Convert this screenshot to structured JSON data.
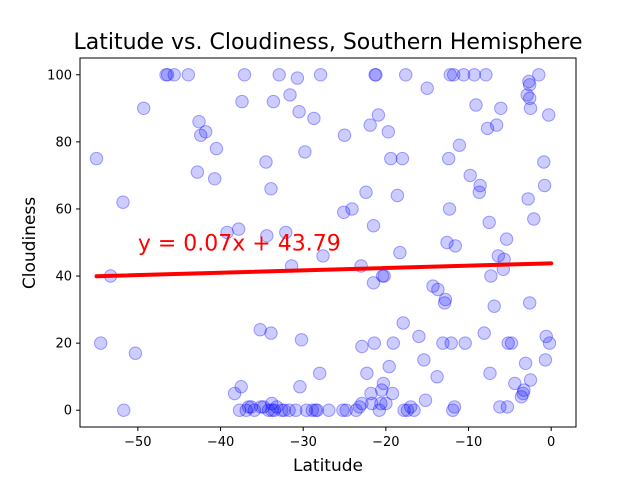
{
  "chart_data": {
    "type": "scatter",
    "title": "Latitude vs. Cloudiness, Southern Hemisphere",
    "xlabel": "Latitude",
    "ylabel": "Cloudiness",
    "xlim": [
      -57,
      3
    ],
    "ylim": [
      -5,
      105
    ],
    "xticks": [
      -50,
      -40,
      -30,
      -20,
      -10,
      0
    ],
    "yticks": [
      0,
      20,
      40,
      60,
      80,
      100
    ],
    "grid": false,
    "point_color": "#0000ff",
    "line_color": "#ff0000",
    "regression": {
      "equation": "y = 0.07x + 43.79",
      "slope": 0.07,
      "intercept": 43.79,
      "x_range": [
        -55,
        0
      ],
      "annotation_at": [
        -50,
        50
      ]
    },
    "points": [
      [
        -55,
        75
      ],
      [
        -54.5,
        20
      ],
      [
        -53.3,
        40
      ],
      [
        -51.8,
        62
      ],
      [
        -51.7,
        0
      ],
      [
        -50.3,
        17
      ],
      [
        -49.3,
        90
      ],
      [
        -46.6,
        100
      ],
      [
        -46.4,
        100
      ],
      [
        -45.6,
        100
      ],
      [
        -43.9,
        100
      ],
      [
        -42.8,
        71
      ],
      [
        -42.6,
        86
      ],
      [
        -42.4,
        82
      ],
      [
        -41.8,
        83
      ],
      [
        -40.7,
        69
      ],
      [
        -40.5,
        78
      ],
      [
        -39.2,
        53
      ],
      [
        -38.3,
        5
      ],
      [
        -37.8,
        54
      ],
      [
        -37.7,
        0
      ],
      [
        -37.5,
        7
      ],
      [
        -37.4,
        92
      ],
      [
        -37.1,
        100
      ],
      [
        -36.9,
        0
      ],
      [
        -36.6,
        1
      ],
      [
        -36.3,
        1
      ],
      [
        -35.9,
        0
      ],
      [
        -35.2,
        24
      ],
      [
        -35.1,
        1
      ],
      [
        -34.8,
        1
      ],
      [
        -34.5,
        74
      ],
      [
        -34.4,
        52
      ],
      [
        -34.2,
        0
      ],
      [
        -33.9,
        23
      ],
      [
        -33.9,
        66
      ],
      [
        -33.8,
        2
      ],
      [
        -33.8,
        0
      ],
      [
        -33.6,
        92
      ],
      [
        -33.5,
        0
      ],
      [
        -33.2,
        1
      ],
      [
        -32.9,
        100
      ],
      [
        -32.6,
        0
      ],
      [
        -32.3,
        0
      ],
      [
        -32.1,
        53
      ],
      [
        -31.7,
        0
      ],
      [
        -31.6,
        94
      ],
      [
        -31.4,
        43
      ],
      [
        -30.9,
        0
      ],
      [
        -30.7,
        99
      ],
      [
        -30.5,
        89
      ],
      [
        -30.4,
        7
      ],
      [
        -30.2,
        21
      ],
      [
        -29.8,
        77
      ],
      [
        -29.6,
        0
      ],
      [
        -28.9,
        0
      ],
      [
        -28.7,
        87
      ],
      [
        -28.5,
        0
      ],
      [
        -28.3,
        0
      ],
      [
        -28.0,
        11
      ],
      [
        -27.9,
        100
      ],
      [
        -27.6,
        46
      ],
      [
        -26.9,
        0
      ],
      [
        -25.2,
        0
      ],
      [
        -25.1,
        59
      ],
      [
        -25.0,
        82
      ],
      [
        -24.8,
        0
      ],
      [
        -24.1,
        60
      ],
      [
        -23.6,
        0
      ],
      [
        -23.2,
        1
      ],
      [
        -23.0,
        43
      ],
      [
        -22.9,
        19
      ],
      [
        -22.9,
        2
      ],
      [
        -22.4,
        65
      ],
      [
        -22.3,
        11
      ],
      [
        -21.9,
        85
      ],
      [
        -21.8,
        5
      ],
      [
        -21.7,
        2
      ],
      [
        -21.5,
        55
      ],
      [
        -21.5,
        38
      ],
      [
        -21.4,
        20
      ],
      [
        -21.3,
        100
      ],
      [
        -21.2,
        100
      ],
      [
        -20.9,
        88
      ],
      [
        -20.8,
        0
      ],
      [
        -20.6,
        2
      ],
      [
        -20.5,
        6
      ],
      [
        -20.4,
        40
      ],
      [
        -20.3,
        8
      ],
      [
        -20.2,
        40
      ],
      [
        -20.0,
        2
      ],
      [
        -19.7,
        83
      ],
      [
        -19.6,
        13
      ],
      [
        -19.4,
        75
      ],
      [
        -19.2,
        5
      ],
      [
        -19.1,
        20
      ],
      [
        -18.6,
        64
      ],
      [
        -18.3,
        47
      ],
      [
        -18.0,
        75
      ],
      [
        -17.9,
        26
      ],
      [
        -17.8,
        0
      ],
      [
        -17.6,
        100
      ],
      [
        -17.4,
        0
      ],
      [
        -17.0,
        1
      ],
      [
        -16.6,
        0
      ],
      [
        -16.0,
        22
      ],
      [
        -15.4,
        15
      ],
      [
        -15.2,
        3
      ],
      [
        -15.0,
        96
      ],
      [
        -14.3,
        37
      ],
      [
        -13.8,
        10
      ],
      [
        -13.7,
        36
      ],
      [
        -13.1,
        20
      ],
      [
        -12.9,
        32
      ],
      [
        -12.8,
        33
      ],
      [
        -12.6,
        50
      ],
      [
        -12.4,
        75
      ],
      [
        -12.3,
        60
      ],
      [
        -12.2,
        100
      ],
      [
        -12.1,
        20
      ],
      [
        -11.9,
        0
      ],
      [
        -11.8,
        100
      ],
      [
        -11.7,
        1
      ],
      [
        -11.6,
        49
      ],
      [
        -11.1,
        79
      ],
      [
        -10.6,
        100
      ],
      [
        -10.4,
        20
      ],
      [
        -9.8,
        70
      ],
      [
        -9.3,
        100
      ],
      [
        -9.1,
        91
      ],
      [
        -8.7,
        65
      ],
      [
        -8.6,
        67
      ],
      [
        -8.1,
        23
      ],
      [
        -7.9,
        100
      ],
      [
        -7.7,
        84
      ],
      [
        -7.5,
        56
      ],
      [
        -7.4,
        11
      ],
      [
        -7.3,
        40
      ],
      [
        -6.9,
        31
      ],
      [
        -6.6,
        85
      ],
      [
        -6.4,
        46
      ],
      [
        -6.2,
        1
      ],
      [
        -6.1,
        90
      ],
      [
        -5.8,
        42
      ],
      [
        -5.7,
        45
      ],
      [
        -5.4,
        51
      ],
      [
        -5.3,
        1
      ],
      [
        -5.2,
        20
      ],
      [
        -4.8,
        20
      ],
      [
        -4.4,
        8
      ],
      [
        -3.6,
        4
      ],
      [
        -3.4,
        5
      ],
      [
        -3.3,
        6
      ],
      [
        -3.1,
        14
      ],
      [
        -2.9,
        94
      ],
      [
        -2.8,
        63
      ],
      [
        -2.7,
        98
      ],
      [
        -2.6,
        97
      ],
      [
        -2.6,
        93
      ],
      [
        -2.6,
        32
      ],
      [
        -2.5,
        90
      ],
      [
        -2.5,
        9
      ],
      [
        -2.1,
        57
      ],
      [
        -1.5,
        100
      ],
      [
        -0.9,
        74
      ],
      [
        -0.8,
        67
      ],
      [
        -0.7,
        15
      ],
      [
        -0.6,
        22
      ],
      [
        -0.3,
        88
      ],
      [
        -0.2,
        20
      ]
    ]
  }
}
